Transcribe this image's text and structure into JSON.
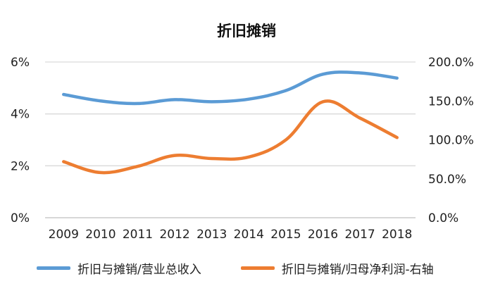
{
  "chart_data": {
    "type": "line",
    "title": "折旧摊销",
    "x": [
      "2009",
      "2010",
      "2011",
      "2012",
      "2013",
      "2014",
      "2015",
      "2016",
      "2017",
      "2018"
    ],
    "left_axis": {
      "ticks": [
        "0%",
        "2%",
        "4%",
        "6%"
      ],
      "tick_values": [
        0,
        2,
        4,
        6
      ],
      "ylim": [
        0,
        6
      ]
    },
    "right_axis": {
      "ticks": [
        "0.0%",
        "50.0%",
        "100.0%",
        "150.0%",
        "200.0%"
      ],
      "tick_values": [
        0,
        50,
        100,
        150,
        200
      ],
      "ylim": [
        0,
        200
      ]
    },
    "series": [
      {
        "name": "折旧与摊销/营业总收入",
        "axis": "left",
        "color": "#5B9BD5",
        "values": [
          4.75,
          4.5,
          4.4,
          4.55,
          4.47,
          4.57,
          4.9,
          5.53,
          5.58,
          5.38
        ]
      },
      {
        "name": "折旧与摊销/归母净利润-右轴",
        "axis": "right",
        "color": "#ED7D31",
        "values": [
          72.0,
          58.0,
          66.0,
          80.0,
          76.0,
          78.0,
          100.0,
          149.0,
          128.0,
          103.0
        ]
      }
    ],
    "grid": "horizontal",
    "legend_position": "bottom"
  }
}
